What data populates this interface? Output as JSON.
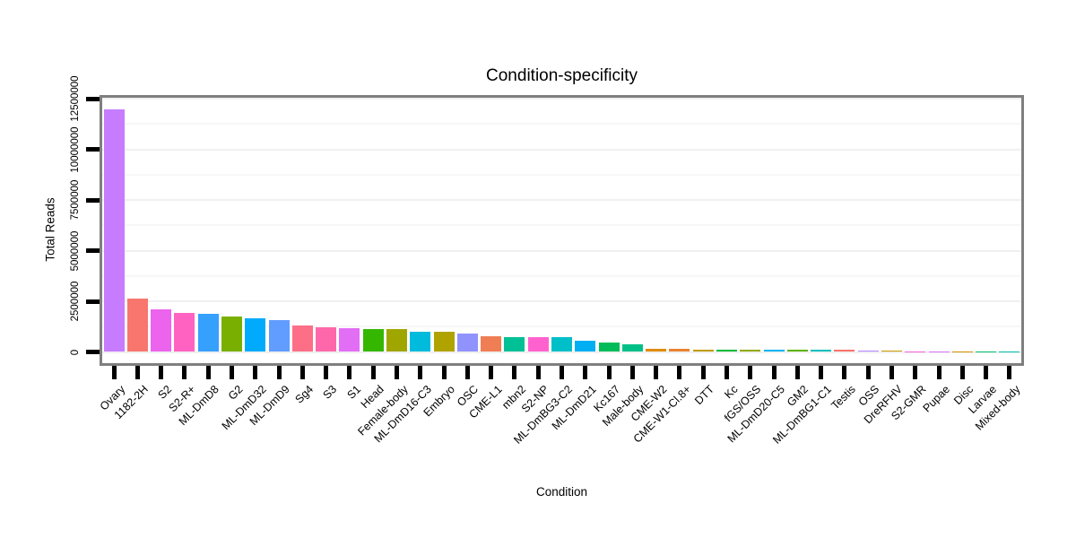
{
  "title": "Condition-specificity",
  "style": {
    "panel_border_color": "#7f7f7f",
    "tick_color": "#000000",
    "grid_major_color": "#f0f0f0",
    "grid_minor_color": "#f7f7f7",
    "background": "#ffffff",
    "text_color": "#000000"
  },
  "chart_data": {
    "type": "bar",
    "title": "Condition-specificity",
    "xlabel": "Condition",
    "ylabel": "Total Reads",
    "ylim": [
      0,
      12500000
    ],
    "yticks": [
      0,
      2500000,
      5000000,
      7500000,
      10000000,
      12500000
    ],
    "yticklabels": [
      "0",
      "2500000",
      "5000000",
      "7500000",
      "10000000",
      "12500000"
    ],
    "grid": "horizontal major and minor, very faint",
    "legend_position": "none",
    "bar_order": "descending by value",
    "categories": [
      "Ovary",
      "1182-2H",
      "S2",
      "S2-R+",
      "ML-DmD8",
      "G2",
      "ML-DmD32",
      "ML-DmD9",
      "Sg4",
      "S3",
      "S1",
      "Head",
      "Female-body",
      "ML-DmD16-C3",
      "Embryo",
      "OSC",
      "CME-L1",
      "mbn2",
      "S2-NP",
      "ML-DmBG3-C2",
      "ML-DmD21",
      "Kc167",
      "Male-body",
      "CME-W2",
      "CME-W1-Cl.8+",
      "DTT",
      "Kc",
      "fGS/OSS",
      "ML-DmD20-C5",
      "GM2",
      "ML-DmBG1-C1",
      "Testis",
      "OSS",
      "DreRFHV",
      "S2-GMR",
      "Pupae",
      "Disc",
      "Larvae",
      "Mixed-body"
    ],
    "values": [
      11950000,
      2640000,
      2090000,
      1920000,
      1900000,
      1760000,
      1660000,
      1550000,
      1300000,
      1220000,
      1170000,
      1140000,
      1130000,
      1000000,
      980000,
      900000,
      790000,
      750000,
      730000,
      720000,
      540000,
      450000,
      380000,
      170000,
      160000,
      120000,
      115000,
      110000,
      105000,
      100000,
      95000,
      90000,
      50000,
      45000,
      40000,
      20000,
      15000,
      10000,
      8000
    ],
    "colors": [
      "#C77CFF",
      "#F8766D",
      "#EC64EE",
      "#FF62C1",
      "#36A0FF",
      "#79AF00",
      "#00ABFD",
      "#619CFF",
      "#FD6F87",
      "#FF67AB",
      "#E36EF6",
      "#35B700",
      "#A0A600",
      "#00BBDB",
      "#B0A300",
      "#9193FC",
      "#F07E55",
      "#00C096",
      "#FF62CE",
      "#00BFC8",
      "#00AEF4",
      "#00BC58",
      "#00C088",
      "#E08B00",
      "#EA8331",
      "#BF9C00",
      "#00BA38",
      "#8FAA00",
      "#00B3F2",
      "#5BB300",
      "#00BFBE",
      "#F9716B",
      "#B285FF",
      "#CB9600",
      "#F763E0",
      "#D873FC",
      "#D79000",
      "#00BE72",
      "#00C0AD"
    ]
  }
}
